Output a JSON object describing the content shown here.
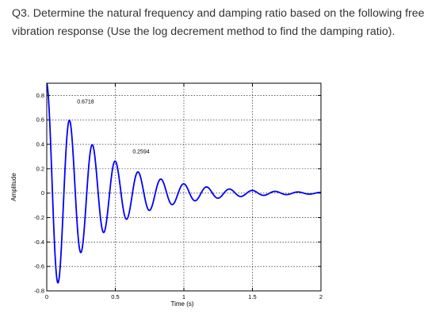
{
  "question": {
    "text": "Q3. Determine the natural frequency and damping ratio based on the following free vibration response (Use the log decrement method to find the damping ratio)."
  },
  "chart_data": {
    "type": "line",
    "xlabel": "Time (s)",
    "ylabel": "Amplitude",
    "xlim": [
      0,
      2
    ],
    "ylim": [
      -0.8,
      0.9
    ],
    "xticks": [
      0,
      0.5,
      1,
      1.5,
      2
    ],
    "xtick_labels": [
      "0",
      "0.5",
      "1",
      "1.5",
      "2"
    ],
    "yticks": [
      -0.8,
      -0.6,
      -0.4,
      -0.2,
      0,
      0.2,
      0.4,
      0.6,
      0.8
    ],
    "ytick_labels": [
      "-0.8",
      "-0.6",
      "-0.4",
      "-0.2",
      "0",
      "0.2",
      "0.4",
      "0.6",
      "0.8"
    ],
    "grid": true,
    "grid_style": "dotted",
    "line_color": "#0000ff",
    "signal": {
      "initial_amplitude": 0.9,
      "period_s": 0.1667,
      "decay_per_s": 2.47,
      "duration_s": 2.0
    },
    "annotations": [
      {
        "text": "0.6718",
        "x": 0.175,
        "y": 0.67
      },
      {
        "text": "0.2594",
        "x": 0.58,
        "y": 0.26
      }
    ]
  }
}
